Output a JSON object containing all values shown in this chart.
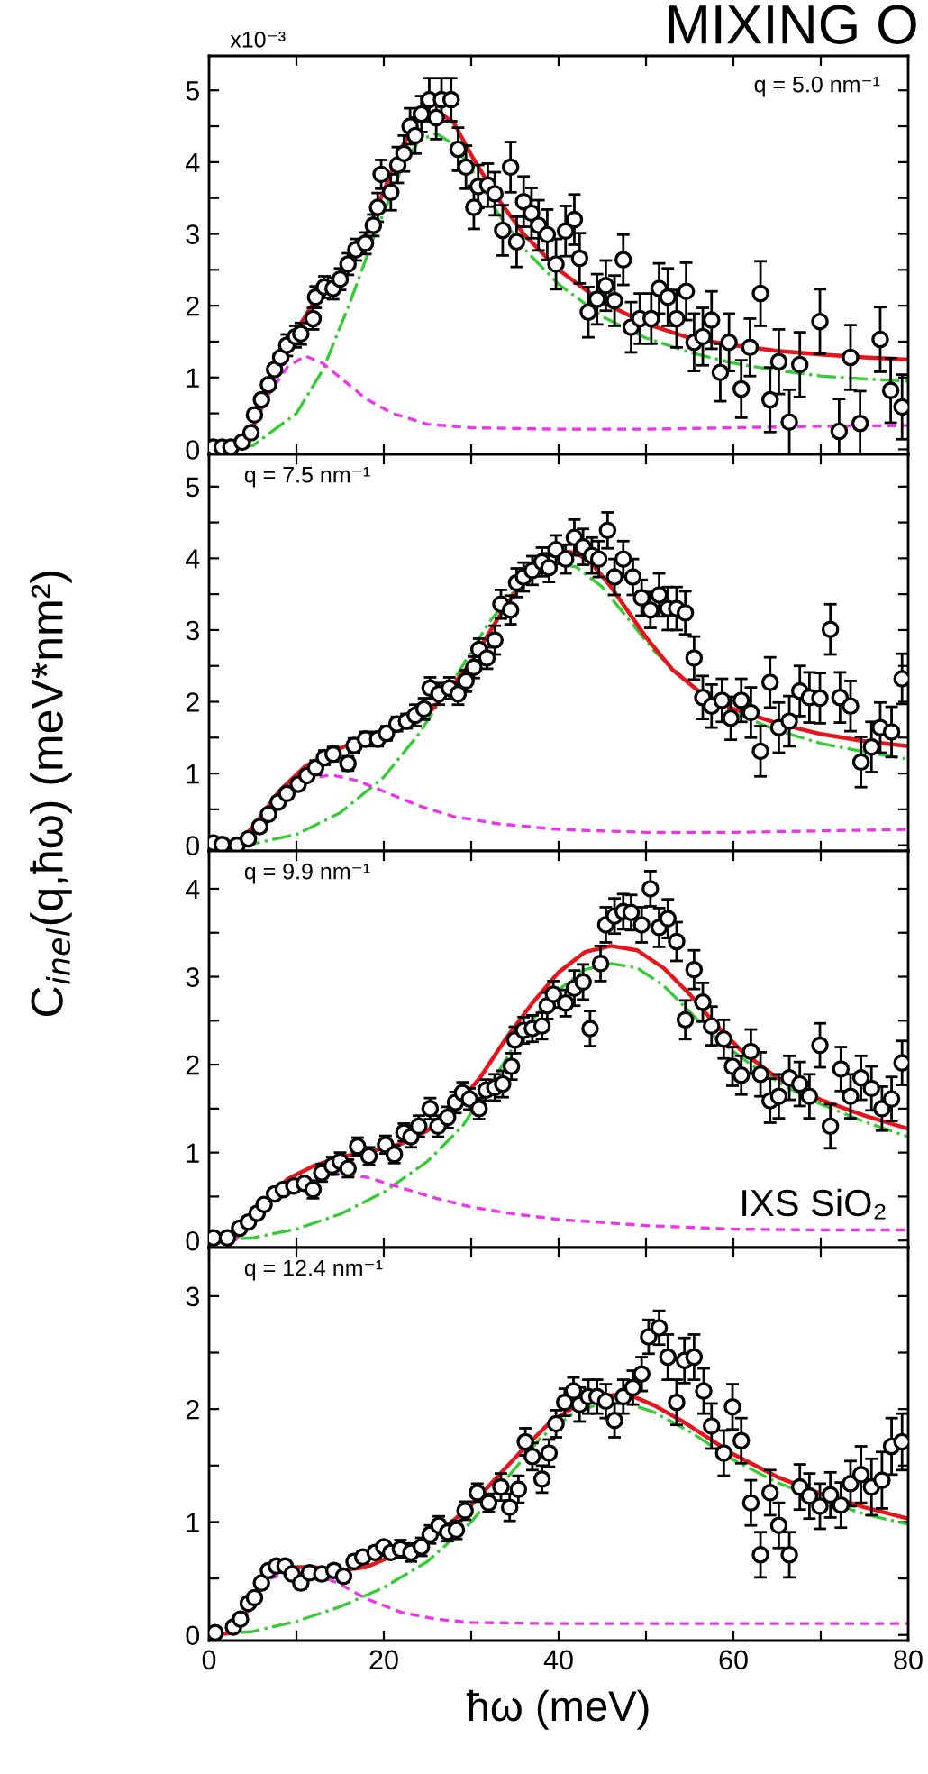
{
  "chart_data": [
    {
      "type": "scatter",
      "title": "MIXING O",
      "annotations": [
        "x10⁻³",
        "q = 5.0 nm⁻¹"
      ],
      "xlim": [
        0,
        80
      ],
      "xticks": [
        0,
        {
          "value": 10,
          "label": null
        },
        20,
        {
          "value": 30,
          "label": null
        },
        40,
        {
          "value": 50,
          "label": null
        },
        60,
        {
          "value": 70,
          "label": null
        },
        80
      ],
      "ylim": [
        -0.07,
        5.48
      ],
      "yticks": [
        0,
        {
          "value": 0.5,
          "label": null
        },
        1,
        {
          "value": 1.5,
          "label": null
        },
        2,
        {
          "value": 2.5,
          "label": null
        },
        3,
        {
          "value": 3.5,
          "label": null
        },
        4,
        {
          "value": 4.5,
          "label": null
        },
        5
      ],
      "tick_labels": "y",
      "series": [
        {
          "marker": "circle",
          "color": "#000000",
          "x": [
            0.5,
            1.5,
            2.5,
            3.8,
            4.8,
            5.2,
            6.0,
            6.8,
            7.5,
            8.2,
            8.9,
            9.9,
            10.5,
            11.9,
            12.2,
            13.2,
            14.2,
            15.0,
            15.9,
            16.8,
            17.9,
            18.8,
            19.3,
            19.7,
            20.8,
            21.6,
            22.3,
            23.0,
            23.6,
            24.3,
            25.2,
            26.0,
            26.6,
            27.7,
            28.5,
            29.4,
            30.3,
            30.8,
            31.9,
            32.7,
            33.6,
            34.5,
            35.2,
            36.0,
            36.9,
            37.7,
            38.7,
            39.7,
            40.8,
            41.8,
            42.4,
            43.4,
            44.4,
            45.4,
            46.4,
            47.4,
            48.3,
            49.3,
            50.6,
            51.5,
            52.5,
            53.5,
            54.6,
            55.5,
            56.5,
            57.5,
            58.5,
            59.5,
            60.9,
            61.9,
            63.1,
            64.2,
            65.2,
            66.4,
            67.6,
            69.9,
            72.1,
            73.4,
            74.5,
            76.8,
            78.0,
            79.3
          ],
          "values": [
            0.03,
            0.03,
            0.03,
            0.1,
            0.23,
            0.48,
            0.69,
            0.9,
            1.11,
            1.28,
            1.45,
            1.57,
            1.61,
            1.82,
            2.12,
            2.26,
            2.24,
            2.37,
            2.58,
            2.78,
            2.87,
            3.12,
            3.37,
            3.83,
            3.58,
            3.96,
            4.12,
            4.5,
            4.37,
            4.67,
            4.87,
            4.62,
            4.87,
            4.87,
            4.18,
            3.93,
            3.37,
            3.66,
            3.68,
            3.56,
            3.05,
            3.93,
            2.89,
            3.45,
            3.29,
            3.12,
            2.99,
            2.58,
            3.04,
            3.2,
            2.66,
            1.91,
            2.09,
            2.28,
            2.07,
            2.64,
            1.7,
            1.82,
            1.82,
            2.24,
            2.12,
            1.82,
            2.2,
            1.49,
            1.57,
            1.8,
            1.07,
            1.49,
            0.84,
            1.42,
            2.17,
            0.69,
            1.22,
            0.38,
            1.18,
            1.78,
            0.25,
            1.28,
            0.36,
            1.53,
            0.82,
            0.59
          ],
          "errors": [
            0.05,
            0.05,
            0.05,
            0.05,
            0.05,
            0.05,
            0.05,
            0.05,
            0.05,
            0.05,
            0.15,
            0.15,
            0.15,
            0.15,
            0.15,
            0.15,
            0.15,
            0.15,
            0.15,
            0.15,
            0.15,
            0.15,
            0.2,
            0.2,
            0.25,
            0.25,
            0.25,
            0.25,
            0.25,
            0.25,
            0.3,
            0.3,
            0.3,
            0.3,
            0.3,
            0.3,
            0.3,
            0.3,
            0.3,
            0.3,
            0.35,
            0.35,
            0.35,
            0.35,
            0.35,
            0.35,
            0.35,
            0.35,
            0.35,
            0.35,
            0.35,
            0.35,
            0.35,
            0.35,
            0.35,
            0.35,
            0.35,
            0.35,
            0.35,
            0.35,
            0.4,
            0.4,
            0.4,
            0.4,
            0.4,
            0.4,
            0.4,
            0.4,
            0.4,
            0.4,
            0.45,
            0.45,
            0.45,
            0.45,
            0.45,
            0.45,
            0.45,
            0.45,
            0.45,
            0.45,
            0.45,
            0.45
          ]
        },
        {
          "type": "line",
          "line_style": "solid",
          "color": "#e8141b",
          "x": [
            0,
            3,
            5,
            7,
            9,
            12,
            15,
            18,
            20,
            22,
            24,
            26,
            28,
            30,
            33,
            36,
            40,
            45,
            50,
            55,
            60,
            65,
            70,
            75,
            80
          ],
          "values": [
            0,
            0.02,
            0.3,
            0.9,
            1.45,
            2.05,
            2.45,
            3.0,
            3.6,
            4.2,
            4.6,
            4.72,
            4.55,
            4.1,
            3.5,
            3.0,
            2.5,
            2.05,
            1.75,
            1.55,
            1.45,
            1.37,
            1.32,
            1.28,
            1.25
          ]
        },
        {
          "type": "line",
          "line_style": "dashdot",
          "color": "#33cc33",
          "x": [
            0,
            5,
            10,
            13,
            16,
            19,
            22,
            24,
            26,
            28,
            30,
            33,
            36,
            40,
            45,
            50,
            55,
            60,
            65,
            70,
            75,
            80
          ],
          "values": [
            0,
            0.05,
            0.5,
            1.1,
            2.0,
            3.0,
            3.9,
            4.3,
            4.4,
            4.25,
            3.9,
            3.3,
            2.8,
            2.3,
            1.85,
            1.55,
            1.35,
            1.2,
            1.1,
            1.02,
            0.98,
            0.95
          ]
        },
        {
          "type": "line",
          "line_style": "dashed",
          "color": "#ee33ee",
          "x": [
            3,
            5,
            7,
            9,
            11,
            13,
            15,
            18,
            21,
            25,
            30,
            40,
            50,
            60,
            70,
            80
          ],
          "values": [
            0,
            0.3,
            0.8,
            1.15,
            1.3,
            1.2,
            1.0,
            0.7,
            0.5,
            0.35,
            0.3,
            0.28,
            0.28,
            0.3,
            0.32,
            0.33
          ]
        }
      ]
    },
    {
      "type": "scatter",
      "ylabel": "C$_{inel}$(q,ħω) (meV*nm²)",
      "annotations": [
        "q = 7.5 nm⁻¹"
      ],
      "xlim": [
        0,
        80
      ],
      "xticks": [
        0,
        {
          "value": 10,
          "label": null
        },
        20,
        {
          "value": 30,
          "label": null
        },
        40,
        {
          "value": 50,
          "label": null
        },
        60,
        {
          "value": 70,
          "label": null
        },
        80
      ],
      "ylim": [
        -0.08,
        5.45
      ],
      "yticks": [
        0,
        {
          "value": 0.5,
          "label": null
        },
        1,
        {
          "value": 1.5,
          "label": null
        },
        2,
        {
          "value": 2.5,
          "label": null
        },
        3,
        {
          "value": 3.5,
          "label": null
        },
        4,
        {
          "value": 4.5,
          "label": null
        },
        5
      ],
      "tick_labels": "y",
      "series": [
        {
          "marker": "circle",
          "color": "#000000",
          "x": [
            0.5,
            1.5,
            3.2,
            4.5,
            5.8,
            6.8,
            7.9,
            8.9,
            10.2,
            11.2,
            12.2,
            13.2,
            14.2,
            15.9,
            16.6,
            17.9,
            19.3,
            20.3,
            21.5,
            22.6,
            23.6,
            24.6,
            25.3,
            26.3,
            27.5,
            28.5,
            29.4,
            30.3,
            30.9,
            31.8,
            32.7,
            33.4,
            34.5,
            35.2,
            36.0,
            37.0,
            38.1,
            38.9,
            39.7,
            40.8,
            41.8,
            42.8,
            43.8,
            44.6,
            45.6,
            46.4,
            47.4,
            48.5,
            49.5,
            50.5,
            51.5,
            52.5,
            53.5,
            54.5,
            55.5,
            56.5,
            57.5,
            58.7,
            59.7,
            60.9,
            62.0,
            63.1,
            64.2,
            65.2,
            66.4,
            67.6,
            68.7,
            69.9,
            71.1,
            72.2,
            73.4,
            74.6,
            75.8,
            76.8,
            78.1,
            79.3
          ],
          "values": [
            0.03,
            0.01,
            0.0,
            0.09,
            0.26,
            0.43,
            0.6,
            0.72,
            0.85,
            0.97,
            1.08,
            1.22,
            1.27,
            1.14,
            1.39,
            1.48,
            1.48,
            1.56,
            1.69,
            1.73,
            1.81,
            1.9,
            2.19,
            2.11,
            2.19,
            2.11,
            2.29,
            2.48,
            2.73,
            2.61,
            2.86,
            3.36,
            3.28,
            3.66,
            3.74,
            3.83,
            3.95,
            3.87,
            4.12,
            3.99,
            4.29,
            4.16,
            4.04,
            3.99,
            4.39,
            3.74,
            3.99,
            3.74,
            3.45,
            3.28,
            3.49,
            3.3,
            3.3,
            3.24,
            2.61,
            2.06,
            1.94,
            2.02,
            1.77,
            2.02,
            1.85,
            1.31,
            2.27,
            1.64,
            1.73,
            2.15,
            2.06,
            2.05,
            3.01,
            2.06,
            1.94,
            1.16,
            1.37,
            1.64,
            1.58,
            2.32
          ],
          "errors": [
            0.05,
            0.05,
            0.05,
            0.05,
            0.05,
            0.05,
            0.05,
            0.05,
            0.05,
            0.05,
            0.1,
            0.1,
            0.1,
            0.1,
            0.1,
            0.1,
            0.1,
            0.1,
            0.1,
            0.1,
            0.15,
            0.15,
            0.15,
            0.15,
            0.15,
            0.15,
            0.15,
            0.15,
            0.15,
            0.15,
            0.2,
            0.2,
            0.2,
            0.2,
            0.2,
            0.2,
            0.2,
            0.2,
            0.2,
            0.2,
            0.25,
            0.25,
            0.25,
            0.25,
            0.25,
            0.25,
            0.25,
            0.25,
            0.25,
            0.25,
            0.3,
            0.3,
            0.3,
            0.3,
            0.3,
            0.3,
            0.3,
            0.3,
            0.3,
            0.3,
            0.35,
            0.35,
            0.35,
            0.35,
            0.35,
            0.35,
            0.35,
            0.35,
            0.35,
            0.35,
            0.35,
            0.35,
            0.35,
            0.35,
            0.35,
            0.35
          ]
        },
        {
          "type": "line",
          "line_style": "solid",
          "color": "#e8141b",
          "x": [
            0,
            3,
            5,
            8,
            11,
            14,
            17,
            20,
            23,
            25,
            27,
            30,
            33,
            36,
            38,
            40,
            42,
            44,
            46,
            48,
            50,
            53,
            56,
            60,
            65,
            70,
            75,
            80
          ],
          "values": [
            0,
            0.02,
            0.25,
            0.75,
            1.1,
            1.3,
            1.45,
            1.6,
            1.75,
            1.82,
            2.1,
            2.55,
            3.15,
            3.7,
            3.98,
            4.1,
            4.08,
            3.9,
            3.6,
            3.25,
            2.9,
            2.45,
            2.15,
            1.9,
            1.7,
            1.55,
            1.45,
            1.38
          ]
        },
        {
          "type": "line",
          "line_style": "dashdot",
          "color": "#33cc33",
          "x": [
            0,
            5,
            10,
            15,
            20,
            24,
            28,
            32,
            35,
            38,
            40,
            42,
            45,
            48,
            51,
            55,
            60,
            65,
            70,
            75,
            80
          ],
          "values": [
            0,
            0.02,
            0.15,
            0.45,
            0.95,
            1.55,
            2.3,
            3.1,
            3.55,
            3.85,
            3.92,
            3.88,
            3.6,
            3.15,
            2.7,
            2.25,
            1.85,
            1.6,
            1.42,
            1.3,
            1.2
          ]
        },
        {
          "type": "line",
          "line_style": "dashed",
          "color": "#ee33ee",
          "x": [
            8,
            11,
            14,
            17,
            20,
            24,
            28,
            33,
            40,
            50,
            60,
            70,
            80
          ],
          "values": [
            0.7,
            0.92,
            0.98,
            0.9,
            0.75,
            0.55,
            0.4,
            0.3,
            0.22,
            0.18,
            0.18,
            0.2,
            0.22
          ]
        }
      ]
    },
    {
      "type": "scatter",
      "annotations": [
        "q = 9.9 nm⁻¹",
        "IXS SiO₂"
      ],
      "xlim": [
        0,
        80
      ],
      "xticks": [
        0,
        {
          "value": 10,
          "label": null
        },
        20,
        {
          "value": 30,
          "label": null
        },
        40,
        {
          "value": 50,
          "label": null
        },
        60,
        {
          "value": 70,
          "label": null
        },
        80
      ],
      "ylim": [
        -0.08,
        4.43
      ],
      "yticks": [
        0,
        {
          "value": 0.5,
          "label": null
        },
        1,
        {
          "value": 1.5,
          "label": null
        },
        2,
        {
          "value": 2.5,
          "label": null
        },
        3,
        {
          "value": 3.5,
          "label": null
        },
        4
      ],
      "tick_labels": "y",
      "series": [
        {
          "marker": "circle",
          "color": "#000000",
          "x": [
            0.5,
            2.1,
            3.5,
            4.5,
            5.5,
            6.3,
            7.5,
            8.5,
            9.7,
            10.9,
            11.9,
            12.9,
            14.1,
            15.0,
            15.9,
            17.0,
            18.3,
            20.2,
            21.2,
            22.3,
            23.1,
            24.0,
            25.3,
            26.2,
            27.3,
            28.2,
            29.0,
            29.8,
            30.9,
            31.7,
            32.7,
            33.6,
            34.6,
            35.0,
            36.0,
            37.0,
            38.1,
            38.7,
            39.4,
            40.8,
            41.8,
            42.8,
            43.6,
            44.8,
            45.4,
            46.4,
            47.4,
            48.3,
            49.5,
            50.5,
            51.5,
            52.5,
            53.5,
            54.5,
            55.5,
            56.5,
            57.5,
            58.9,
            59.9,
            60.9,
            62.0,
            63.1,
            64.2,
            65.2,
            66.4,
            67.6,
            68.7,
            69.9,
            71.1,
            72.3,
            73.4,
            74.6,
            75.8,
            77.0,
            78.1,
            79.3
          ],
          "values": [
            0.03,
            0.03,
            0.14,
            0.21,
            0.31,
            0.41,
            0.53,
            0.58,
            0.62,
            0.65,
            0.58,
            0.77,
            0.85,
            0.9,
            0.82,
            1.07,
            0.96,
            1.09,
            0.98,
            1.23,
            1.18,
            1.3,
            1.5,
            1.3,
            1.4,
            1.57,
            1.68,
            1.61,
            1.5,
            1.71,
            1.74,
            1.78,
            1.98,
            2.28,
            2.39,
            2.41,
            2.44,
            2.67,
            2.8,
            2.7,
            2.87,
            2.94,
            2.41,
            3.15,
            3.59,
            3.69,
            3.74,
            3.73,
            3.59,
            4.0,
            3.56,
            3.66,
            3.4,
            2.51,
            3.08,
            2.71,
            2.44,
            2.29,
            1.98,
            1.88,
            2.15,
            1.89,
            1.59,
            1.64,
            1.85,
            1.78,
            1.64,
            2.22,
            1.3,
            1.95,
            1.64,
            1.85,
            1.73,
            1.5,
            1.61,
            2.02
          ],
          "errors": [
            0.05,
            0.05,
            0.05,
            0.05,
            0.05,
            0.05,
            0.05,
            0.05,
            0.05,
            0.05,
            0.1,
            0.1,
            0.1,
            0.1,
            0.1,
            0.1,
            0.1,
            0.1,
            0.1,
            0.1,
            0.12,
            0.12,
            0.12,
            0.12,
            0.12,
            0.12,
            0.12,
            0.12,
            0.12,
            0.12,
            0.15,
            0.15,
            0.15,
            0.15,
            0.15,
            0.15,
            0.15,
            0.15,
            0.15,
            0.15,
            0.2,
            0.2,
            0.2,
            0.2,
            0.2,
            0.2,
            0.2,
            0.2,
            0.2,
            0.2,
            0.22,
            0.22,
            0.22,
            0.22,
            0.22,
            0.22,
            0.22,
            0.22,
            0.22,
            0.22,
            0.25,
            0.25,
            0.25,
            0.25,
            0.25,
            0.25,
            0.25,
            0.25,
            0.25,
            0.25,
            0.25,
            0.25,
            0.25,
            0.25,
            0.25,
            0.25
          ]
        },
        {
          "type": "line",
          "line_style": "solid",
          "color": "#e8141b",
          "x": [
            0,
            3,
            6,
            9,
            12,
            15,
            18,
            22,
            25,
            28,
            31,
            34,
            37,
            40,
            43,
            46,
            49,
            52,
            55,
            58,
            61,
            65,
            70,
            75,
            80
          ],
          "values": [
            0,
            0.05,
            0.4,
            0.7,
            0.85,
            0.95,
            1.0,
            1.1,
            1.25,
            1.5,
            1.85,
            2.3,
            2.7,
            3.05,
            3.28,
            3.35,
            3.3,
            3.1,
            2.8,
            2.45,
            2.15,
            1.85,
            1.6,
            1.42,
            1.27
          ]
        },
        {
          "type": "line",
          "line_style": "dashdot",
          "color": "#33cc33",
          "x": [
            0,
            5,
            10,
            15,
            20,
            25,
            29,
            33,
            36,
            40,
            43,
            46,
            49,
            52,
            55,
            58,
            62,
            66,
            70,
            75,
            80
          ],
          "values": [
            0,
            0.03,
            0.13,
            0.3,
            0.55,
            0.9,
            1.3,
            1.9,
            2.4,
            2.85,
            3.08,
            3.15,
            3.1,
            2.9,
            2.6,
            2.3,
            2.0,
            1.75,
            1.55,
            1.35,
            1.18
          ]
        },
        {
          "type": "line",
          "line_style": "dashed",
          "color": "#ee33ee",
          "x": [
            3,
            6,
            9,
            12,
            15,
            18,
            22,
            26,
            30,
            35,
            40,
            50,
            60,
            70,
            80
          ],
          "values": [
            0,
            0.35,
            0.6,
            0.72,
            0.76,
            0.72,
            0.6,
            0.48,
            0.38,
            0.3,
            0.24,
            0.17,
            0.13,
            0.12,
            0.12
          ]
        }
      ]
    },
    {
      "type": "scatter",
      "xlabel": "ħω (meV)",
      "annotations": [
        "q = 12.4 nm⁻¹"
      ],
      "xlim": [
        0,
        80
      ],
      "xticks": [
        0,
        {
          "value": 10,
          "label": null
        },
        20,
        {
          "value": 30,
          "label": null
        },
        40,
        {
          "value": 50,
          "label": null
        },
        60,
        {
          "value": 70,
          "label": null
        },
        80
      ],
      "ylim": [
        -0.05,
        3.43
      ],
      "yticks": [
        0,
        {
          "value": 0.5,
          "label": null
        },
        1,
        {
          "value": 1.5,
          "label": null
        },
        2,
        {
          "value": 2.5,
          "label": null
        },
        3
      ],
      "series": [
        {
          "marker": "circle",
          "color": "#000000",
          "x": [
            0.7,
            2.8,
            3.6,
            4.5,
            5.2,
            6.0,
            6.8,
            7.7,
            8.7,
            9.5,
            10.5,
            11.5,
            12.9,
            14.3,
            15.4,
            16.6,
            17.6,
            19.0,
            20.0,
            20.8,
            21.9,
            23.1,
            24.3,
            25.3,
            26.3,
            27.3,
            28.3,
            29.3,
            30.7,
            32.0,
            33.4,
            34.4,
            35.4,
            36.2,
            37.0,
            38.1,
            38.9,
            39.7,
            40.7,
            41.7,
            42.4,
            43.4,
            44.4,
            45.4,
            46.4,
            47.4,
            48.5,
            49.5,
            50.3,
            51.5,
            52.5,
            53.5,
            54.4,
            55.5,
            56.6,
            57.5,
            58.9,
            59.9,
            60.9,
            62.0,
            63.1,
            64.2,
            65.2,
            66.4,
            67.6,
            68.7,
            69.9,
            71.1,
            72.3,
            73.4,
            74.6,
            75.8,
            77.0,
            78.1,
            79.3
          ],
          "values": [
            0.02,
            0.07,
            0.14,
            0.28,
            0.33,
            0.46,
            0.57,
            0.61,
            0.61,
            0.54,
            0.46,
            0.55,
            0.54,
            0.57,
            0.52,
            0.65,
            0.69,
            0.73,
            0.78,
            0.73,
            0.76,
            0.73,
            0.78,
            0.89,
            0.97,
            0.91,
            0.93,
            1.1,
            1.26,
            1.17,
            1.31,
            1.13,
            1.29,
            1.71,
            1.58,
            1.38,
            1.61,
            1.87,
            2.06,
            2.16,
            2.04,
            2.11,
            2.11,
            2.07,
            1.9,
            2.11,
            2.19,
            2.31,
            2.64,
            2.72,
            2.46,
            2.06,
            2.43,
            2.46,
            2.16,
            1.85,
            1.61,
            2.02,
            1.72,
            1.17,
            0.71,
            1.26,
            0.97,
            0.71,
            1.31,
            1.23,
            1.14,
            1.24,
            1.15,
            1.34,
            1.42,
            1.31,
            1.37,
            1.67,
            1.71
          ],
          "errors": [
            0.03,
            0.03,
            0.03,
            0.03,
            0.03,
            0.03,
            0.03,
            0.03,
            0.03,
            0.03,
            0.05,
            0.05,
            0.05,
            0.05,
            0.05,
            0.05,
            0.05,
            0.05,
            0.05,
            0.05,
            0.08,
            0.08,
            0.08,
            0.08,
            0.08,
            0.08,
            0.08,
            0.08,
            0.08,
            0.08,
            0.12,
            0.12,
            0.12,
            0.12,
            0.12,
            0.12,
            0.12,
            0.12,
            0.12,
            0.12,
            0.15,
            0.15,
            0.15,
            0.15,
            0.15,
            0.15,
            0.15,
            0.15,
            0.15,
            0.15,
            0.2,
            0.2,
            0.2,
            0.2,
            0.2,
            0.2,
            0.2,
            0.2,
            0.2,
            0.2,
            0.2,
            0.2,
            0.2,
            0.2,
            0.2,
            0.2,
            0.2,
            0.2,
            0.2,
            0.2,
            0.25,
            0.25,
            0.25,
            0.25,
            0.25
          ]
        },
        {
          "type": "line",
          "line_style": "solid",
          "color": "#e8141b",
          "x": [
            0,
            3,
            5,
            7,
            9,
            12,
            15,
            18,
            21,
            24,
            27,
            30,
            33,
            36,
            39,
            42,
            45,
            48,
            51,
            54,
            57,
            60,
            65,
            70,
            75,
            80
          ],
          "values": [
            0,
            0.02,
            0.3,
            0.55,
            0.6,
            0.6,
            0.57,
            0.6,
            0.7,
            0.82,
            0.95,
            1.15,
            1.4,
            1.65,
            1.88,
            2.03,
            2.12,
            2.13,
            2.03,
            1.9,
            1.75,
            1.6,
            1.4,
            1.25,
            1.13,
            1.03
          ]
        },
        {
          "type": "line",
          "line_style": "dashdot",
          "color": "#33cc33",
          "x": [
            0,
            5,
            10,
            15,
            20,
            25,
            30,
            34,
            38,
            42,
            45,
            48,
            51,
            55,
            60,
            65,
            70,
            75,
            80
          ],
          "values": [
            0,
            0.03,
            0.12,
            0.25,
            0.42,
            0.65,
            1.0,
            1.38,
            1.75,
            1.98,
            2.05,
            2.05,
            1.97,
            1.8,
            1.55,
            1.35,
            1.2,
            1.07,
            0.98
          ]
        },
        {
          "type": "line",
          "line_style": "dashed",
          "color": "#ee33ee",
          "x": [
            5,
            7,
            9,
            12,
            15,
            18,
            22,
            26,
            30,
            40,
            60,
            80
          ],
          "values": [
            0.28,
            0.5,
            0.55,
            0.55,
            0.45,
            0.32,
            0.2,
            0.14,
            0.11,
            0.1,
            0.1,
            0.1
          ]
        }
      ]
    }
  ]
}
